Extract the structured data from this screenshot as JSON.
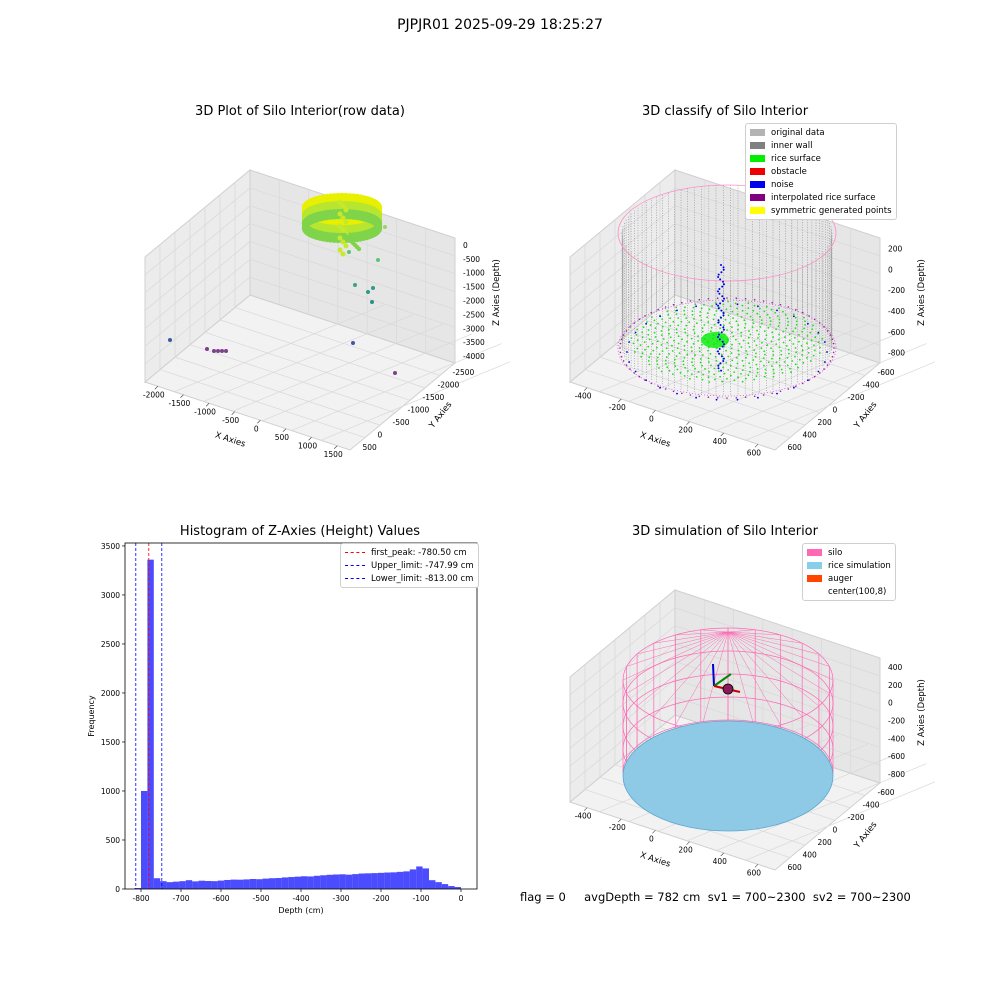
{
  "suptitle": "PJPJR01 2025-09-29 18:25:27",
  "panels": {
    "raw": {
      "title": "3D Plot of Silo Interior(row data)",
      "xlabel": "X Axies",
      "ylabel": "Y Axies",
      "zlabel": "Z Axies (Depth)",
      "xticks": [
        "-2000",
        "-1500",
        "-1000",
        "-500",
        "0",
        "500",
        "1000",
        "1500"
      ],
      "yticks": [
        "500",
        "0",
        "-500",
        "-1000",
        "-1500",
        "-2000",
        "-2500"
      ],
      "zticks": [
        "0",
        "-500",
        "-1000",
        "-1500",
        "-2000",
        "-2500",
        "-3000",
        "-3500",
        "-4000"
      ]
    },
    "classify": {
      "title": "3D classify of Silo Interior",
      "xlabel": "X Axies",
      "ylabel": "Y Axies",
      "zlabel": "Z Axies (Depth)",
      "xticks": [
        "-400",
        "-200",
        "0",
        "200",
        "400",
        "600"
      ],
      "yticks": [
        "600",
        "400",
        "200",
        "0",
        "-200",
        "-400",
        "-600"
      ],
      "zticks": [
        "200",
        "0",
        "-200",
        "-400",
        "-600",
        "-800"
      ],
      "legend": [
        {
          "label": "original data",
          "color": "#b3b3b3"
        },
        {
          "label": "inner wall",
          "color": "#808080"
        },
        {
          "label": "rice surface",
          "color": "#00ee00"
        },
        {
          "label": "obstacle",
          "color": "#ee0000"
        },
        {
          "label": "noise",
          "color": "#0000ee"
        },
        {
          "label": "interpolated rice surface",
          "color": "#800080"
        },
        {
          "label": "symmetric generated points",
          "color": "#ffff00"
        }
      ]
    },
    "simulation": {
      "title": "3D simulation of Silo Interior",
      "xlabel": "X Axies",
      "ylabel": "Y Axies",
      "zlabel": "Z Axies (Depth)",
      "xticks": [
        "-400",
        "-200",
        "0",
        "200",
        "400",
        "600"
      ],
      "yticks": [
        "600",
        "400",
        "200",
        "0",
        "-200",
        "-400",
        "-600"
      ],
      "zticks": [
        "400",
        "200",
        "0",
        "-200",
        "-400",
        "-600",
        "-800"
      ],
      "legend": [
        {
          "label": "silo",
          "color": "#ff69b4"
        },
        {
          "label": "rice simulation",
          "color": "#87ceeb"
        },
        {
          "label": "auger",
          "color": "#ff4500"
        },
        {
          "label": "center(100,8)",
          "color": "#ffffff"
        }
      ]
    }
  },
  "footer": "flag = 0     avgDepth = 782 cm  sv1 = 700~2300  sv2 = 700~2300",
  "chart_data": {
    "type": "bar",
    "title": "Histogram of Z-Axies (Height) Values",
    "xlabel": "Depth (cm)",
    "ylabel": "Frequency",
    "xlim": [
      -840,
      40
    ],
    "ylim": [
      0,
      3530
    ],
    "xticks": [
      -800,
      -700,
      -600,
      -500,
      -400,
      -300,
      -200,
      -100,
      0
    ],
    "yticks": [
      0,
      500,
      1000,
      1500,
      2000,
      2500,
      3000,
      3500
    ],
    "bin_edges": [
      -816,
      -800,
      -784,
      -768,
      -752,
      -736,
      -720,
      -704,
      -688,
      -672,
      -656,
      -640,
      -624,
      -608,
      -592,
      -576,
      -560,
      -544,
      -528,
      -512,
      -496,
      -480,
      -464,
      -448,
      -432,
      -416,
      -400,
      -384,
      -368,
      -352,
      -336,
      -320,
      -304,
      -288,
      -272,
      -256,
      -240,
      -224,
      -208,
      -192,
      -176,
      -160,
      -144,
      -128,
      -112,
      -96,
      -80,
      -64,
      -48,
      -32,
      -16,
      0
    ],
    "values": [
      10,
      1000,
      3360,
      110,
      80,
      70,
      75,
      80,
      90,
      78,
      85,
      82,
      80,
      86,
      92,
      96,
      95,
      98,
      102,
      100,
      106,
      110,
      112,
      118,
      122,
      126,
      130,
      128,
      135,
      140,
      145,
      148,
      150,
      146,
      152,
      158,
      160,
      162,
      165,
      168,
      170,
      175,
      180,
      200,
      230,
      210,
      90,
      70,
      50,
      30,
      20
    ],
    "bar_color": "#0000ff",
    "vlines": [
      {
        "label": "first_peak: -780.50 cm",
        "x": -780.5,
        "color": "#ff0000"
      },
      {
        "label": "Upper_limit: -747.99 cm",
        "x": -747.99,
        "color": "#0000ff"
      },
      {
        "label": "Lower_limit: -813.00 cm",
        "x": -813.0,
        "color": "#0000ff"
      }
    ]
  }
}
